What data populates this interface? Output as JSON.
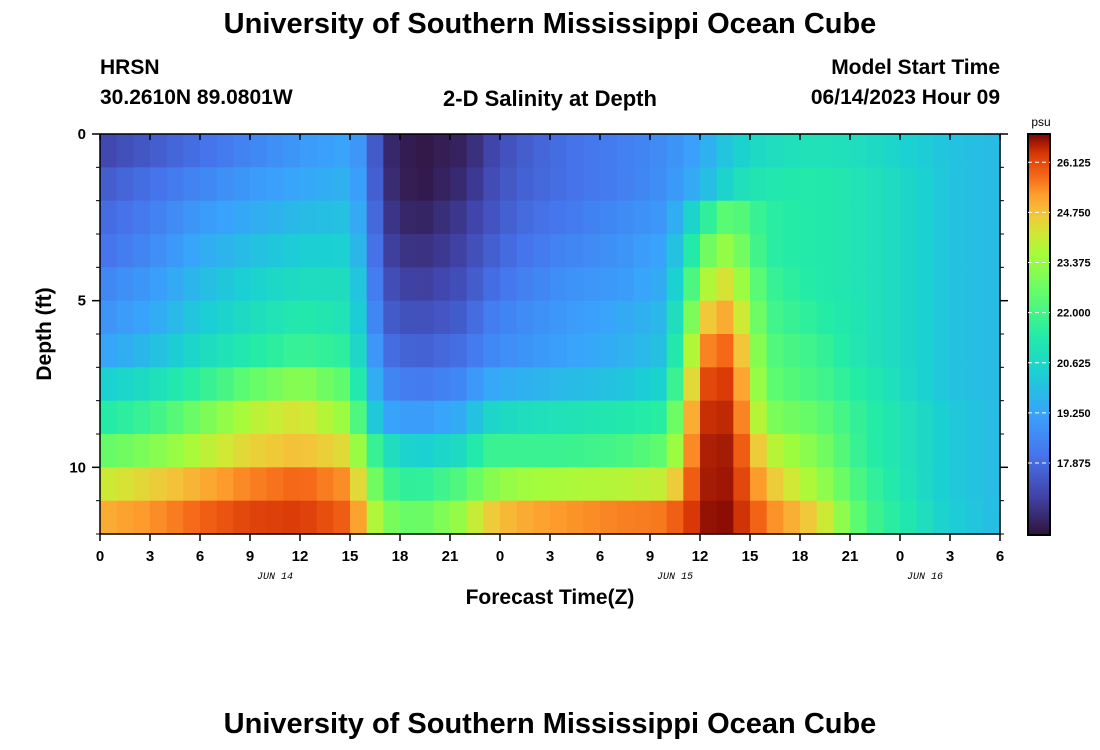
{
  "header": {
    "title": "University of Southern Mississippi Ocean Cube",
    "station": "HRSN",
    "coords": "30.2610N  89.0801W",
    "plot_title": "2-D Salinity at Depth",
    "model_label": "Model Start Time",
    "model_time": "06/14/2023 Hour 09"
  },
  "footer": {
    "title": "University of Southern Mississippi Ocean Cube"
  },
  "chart_data": {
    "type": "heatmap",
    "title": "2-D Salinity at Depth",
    "xlabel": "Forecast Time(Z)",
    "ylabel": "Depth (ft)",
    "x_tick_labels": [
      "0",
      "3",
      "6",
      "9",
      "12",
      "15",
      "18",
      "21",
      "0",
      "3",
      "6",
      "9",
      "12",
      "15",
      "18",
      "21",
      "0",
      "3",
      "6"
    ],
    "date_labels": [
      {
        "label": "JUN 14",
        "at_tick": 3.5
      },
      {
        "label": "JUN 15",
        "at_tick": 11.5
      },
      {
        "label": "JUN 16",
        "at_tick": 16.5
      }
    ],
    "y_tick_labels": [
      "0",
      "5",
      "10"
    ],
    "y_tick_depths": [
      0,
      5,
      10
    ],
    "y_range_ft": [
      0,
      12
    ],
    "colorbar_unit": "psu",
    "colorbar_ticks": [
      "26.125",
      "24.750",
      "23.375",
      "22.000",
      "20.625",
      "19.250",
      "17.875"
    ],
    "colorbar_tick_values": [
      26.125,
      24.75,
      23.375,
      22.0,
      20.625,
      19.25,
      17.875
    ],
    "value_range": [
      15.9,
      26.9
    ],
    "n_hours": 54,
    "depth_layers_ft": [
      0.5,
      1.5,
      2.5,
      3.5,
      4.5,
      5.5,
      6.5,
      7.5,
      8.5,
      9.5,
      10.5,
      11.5
    ],
    "hours": [
      0,
      3,
      6,
      9,
      12,
      15,
      16,
      17,
      19,
      22,
      23,
      25,
      28,
      31,
      34,
      36,
      37,
      38,
      40,
      43,
      46,
      49,
      51,
      54
    ],
    "salinity_psu": [
      [
        17.0,
        17.5,
        18.0,
        18.5,
        19.0,
        19.3,
        18.5,
        16.5,
        16.0,
        16.3,
        16.8,
        17.5,
        18.0,
        18.3,
        18.7,
        19.3,
        19.8,
        20.3,
        20.8,
        21.0,
        20.8,
        20.3,
        20.0,
        19.8
      ],
      [
        17.5,
        18.0,
        18.5,
        19.0,
        19.3,
        19.6,
        18.6,
        16.6,
        16.0,
        16.5,
        17.0,
        17.6,
        18.0,
        18.3,
        18.8,
        19.6,
        20.2,
        20.8,
        21.2,
        21.3,
        21.0,
        20.5,
        20.0,
        19.8
      ],
      [
        17.8,
        18.3,
        19.0,
        19.4,
        19.8,
        20.0,
        18.8,
        16.8,
        16.2,
        16.8,
        17.2,
        17.8,
        18.2,
        18.6,
        19.0,
        21.0,
        22.2,
        22.5,
        21.5,
        21.3,
        21.0,
        20.5,
        20.0,
        19.8
      ],
      [
        18.0,
        18.6,
        19.4,
        19.9,
        20.3,
        20.4,
        19.0,
        17.0,
        16.5,
        17.0,
        17.5,
        18.0,
        18.5,
        18.8,
        19.3,
        22.0,
        23.5,
        23.2,
        21.5,
        21.3,
        21.0,
        20.5,
        20.0,
        19.8
      ],
      [
        18.5,
        19.0,
        19.8,
        20.4,
        20.8,
        20.8,
        19.3,
        17.3,
        16.8,
        17.3,
        17.8,
        18.3,
        18.8,
        19.0,
        19.5,
        23.0,
        24.5,
        24.0,
        21.8,
        21.3,
        21.0,
        20.5,
        20.0,
        19.8
      ],
      [
        18.8,
        19.3,
        20.2,
        20.8,
        21.3,
        21.0,
        19.5,
        17.6,
        17.2,
        17.6,
        18.2,
        18.6,
        19.0,
        19.3,
        19.8,
        24.0,
        25.3,
        24.8,
        22.0,
        21.5,
        21.0,
        20.5,
        20.0,
        19.8
      ],
      [
        19.2,
        19.8,
        20.7,
        21.3,
        21.8,
        21.5,
        19.8,
        18.0,
        17.6,
        18.0,
        18.5,
        18.8,
        19.2,
        19.5,
        20.0,
        25.0,
        26.0,
        25.5,
        22.3,
        21.8,
        21.0,
        20.5,
        20.0,
        19.8
      ],
      [
        20.3,
        20.8,
        21.6,
        22.5,
        23.2,
        22.3,
        20.3,
        18.6,
        18.2,
        18.6,
        19.3,
        19.5,
        19.8,
        20.0,
        20.5,
        25.7,
        26.6,
        26.0,
        22.5,
        22.0,
        21.3,
        20.5,
        20.0,
        19.8
      ],
      [
        21.3,
        21.8,
        22.8,
        23.8,
        24.3,
        23.3,
        21.0,
        19.3,
        19.0,
        19.5,
        20.5,
        20.8,
        21.0,
        21.2,
        21.5,
        26.2,
        26.7,
        26.3,
        23.0,
        22.5,
        21.5,
        20.8,
        20.2,
        19.8
      ],
      [
        22.5,
        23.0,
        23.8,
        24.5,
        24.8,
        24.3,
        22.5,
        21.0,
        20.3,
        20.8,
        21.8,
        21.8,
        21.8,
        22.0,
        22.5,
        26.4,
        26.8,
        26.5,
        24.0,
        23.0,
        21.5,
        20.8,
        20.2,
        19.8
      ],
      [
        24.0,
        24.5,
        25.0,
        25.5,
        25.8,
        25.3,
        23.5,
        22.0,
        21.5,
        22.3,
        23.0,
        23.5,
        23.7,
        23.8,
        24.0,
        26.5,
        26.8,
        26.6,
        24.8,
        23.5,
        21.8,
        20.8,
        20.2,
        19.8
      ],
      [
        25.0,
        25.3,
        25.8,
        26.2,
        26.3,
        25.8,
        24.5,
        23.0,
        22.5,
        23.5,
        24.5,
        25.0,
        25.3,
        25.5,
        25.6,
        26.6,
        26.9,
        26.7,
        25.5,
        24.5,
        22.0,
        21.0,
        20.3,
        19.8
      ]
    ]
  }
}
